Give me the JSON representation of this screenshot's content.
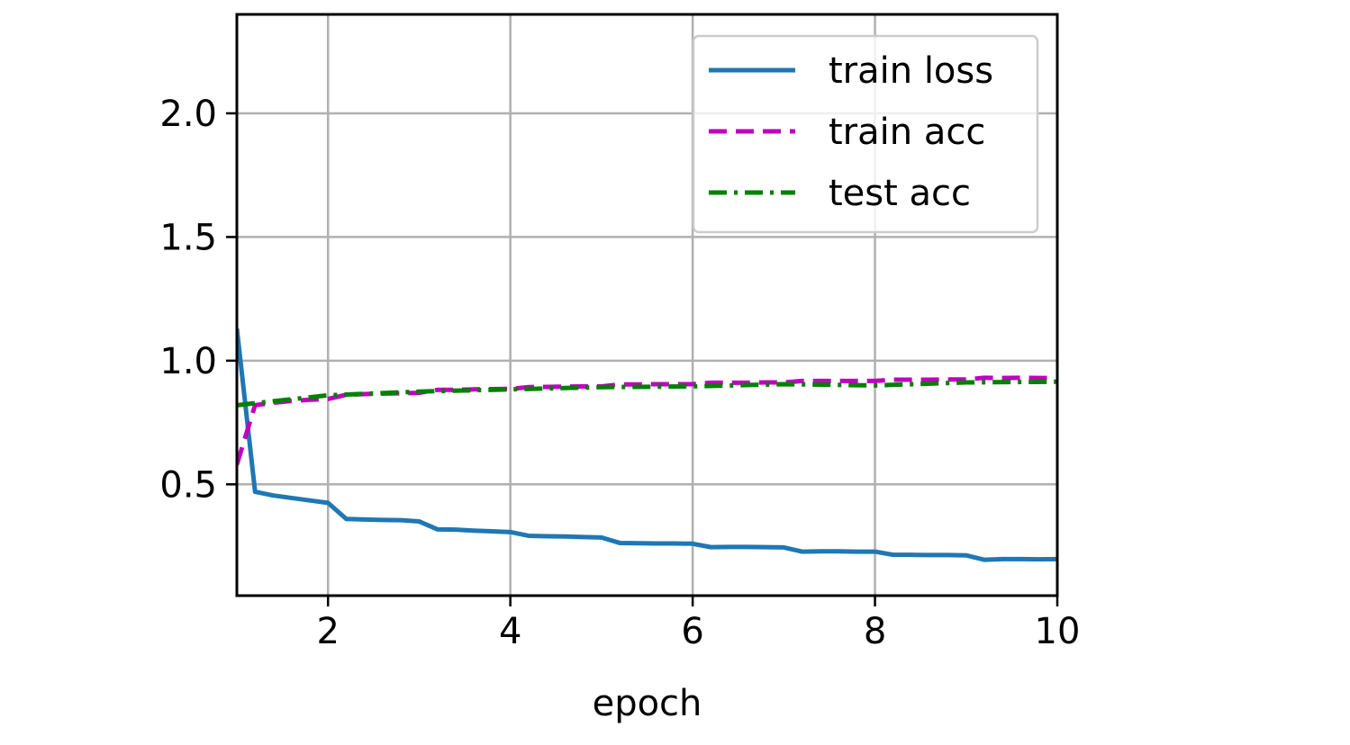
{
  "chart_data": {
    "type": "line",
    "title": "",
    "xlabel": "epoch",
    "ylabel": "",
    "xlim": [
      1,
      10
    ],
    "ylim": [
      0.05,
      2.4
    ],
    "xticks": [
      2,
      4,
      6,
      8,
      10
    ],
    "yticks": [
      0.5,
      1.0,
      1.5,
      2.0
    ],
    "xtick_labels": [
      "2",
      "4",
      "6",
      "8",
      "10"
    ],
    "ytick_labels": [
      "0.5",
      "1.0",
      "1.5",
      "2.0"
    ],
    "grid": true,
    "legend_position": "top-right",
    "series": [
      {
        "name": "train loss",
        "color": "#1f77b4",
        "style": "solid",
        "x": [
          1.0,
          1.2,
          1.4,
          1.6,
          1.8,
          2.0,
          2.2,
          2.4,
          2.6,
          2.8,
          3.0,
          3.2,
          3.4,
          3.6,
          3.8,
          4.0,
          4.2,
          4.4,
          4.6,
          4.8,
          5.0,
          5.2,
          5.4,
          5.6,
          5.8,
          6.0,
          6.2,
          6.4,
          6.6,
          6.8,
          7.0,
          7.2,
          7.4,
          7.6,
          7.8,
          8.0,
          8.2,
          8.4,
          8.6,
          8.8,
          9.0,
          9.2,
          9.4,
          9.6,
          9.8,
          10.0
        ],
        "y": [
          1.13,
          0.47,
          0.455,
          0.445,
          0.435,
          0.425,
          0.36,
          0.358,
          0.356,
          0.355,
          0.35,
          0.318,
          0.317,
          0.313,
          0.31,
          0.307,
          0.292,
          0.29,
          0.289,
          0.287,
          0.285,
          0.263,
          0.262,
          0.261,
          0.261,
          0.26,
          0.246,
          0.247,
          0.247,
          0.246,
          0.245,
          0.228,
          0.229,
          0.229,
          0.228,
          0.228,
          0.215,
          0.215,
          0.214,
          0.214,
          0.213,
          0.195,
          0.198,
          0.198,
          0.197,
          0.198
        ]
      },
      {
        "name": "train acc",
        "color": "#bf00bf",
        "style": "dashed",
        "x": [
          1.0,
          1.2,
          1.4,
          1.6,
          1.8,
          2.0,
          2.2,
          2.4,
          2.6,
          2.8,
          3.0,
          3.2,
          3.4,
          3.6,
          3.8,
          4.0,
          4.2,
          4.4,
          4.6,
          4.8,
          5.0,
          5.2,
          5.4,
          5.6,
          5.8,
          6.0,
          6.2,
          6.4,
          6.6,
          6.8,
          7.0,
          7.2,
          7.4,
          7.6,
          7.8,
          8.0,
          8.2,
          8.4,
          8.6,
          8.8,
          9.0,
          9.2,
          9.4,
          9.6,
          9.8,
          10.0
        ],
        "y": [
          0.58,
          0.82,
          0.83,
          0.837,
          0.842,
          0.845,
          0.862,
          0.865,
          0.867,
          0.868,
          0.87,
          0.882,
          0.882,
          0.884,
          0.885,
          0.886,
          0.893,
          0.894,
          0.895,
          0.896,
          0.896,
          0.904,
          0.904,
          0.905,
          0.905,
          0.905,
          0.911,
          0.911,
          0.911,
          0.912,
          0.912,
          0.918,
          0.918,
          0.918,
          0.918,
          0.918,
          0.923,
          0.923,
          0.923,
          0.924,
          0.924,
          0.931,
          0.93,
          0.931,
          0.93,
          0.93
        ]
      },
      {
        "name": "test acc",
        "color": "#008000",
        "style": "dashdot",
        "x": [
          1.0,
          2.0,
          3.0,
          4.0,
          5.0,
          6.0,
          7.0,
          8.0,
          9.0,
          10.0
        ],
        "y": [
          0.82,
          0.86,
          0.875,
          0.884,
          0.893,
          0.896,
          0.905,
          0.9,
          0.912,
          0.915
        ]
      }
    ]
  }
}
